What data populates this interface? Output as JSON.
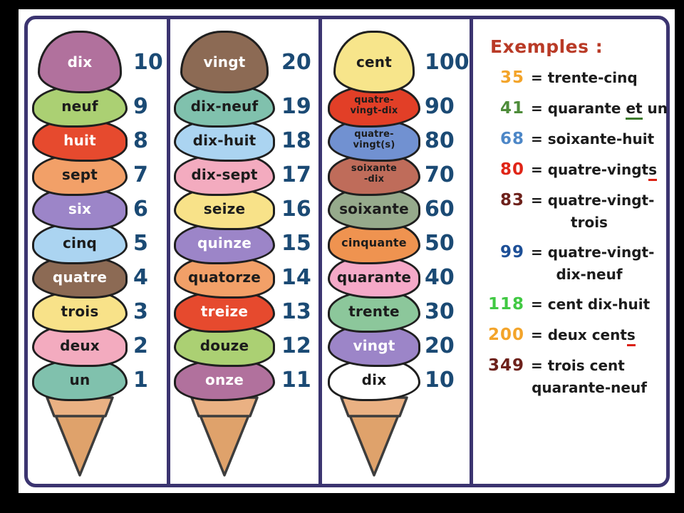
{
  "poster": {
    "frame_color": "#000000",
    "board_color": "#ffffff",
    "border_color": "#3b3470",
    "number_color": "#1b4a74",
    "scoop_outline_color": "#1f1f1f",
    "cone_colors": {
      "rim": "#eab183",
      "body": "#dfa26b",
      "outline": "#3d3d3d"
    }
  },
  "columns": [
    {
      "id": "units",
      "rows": [
        {
          "word": "dix",
          "num": "10",
          "bg": "#b1719d",
          "fg": "#ffffff"
        },
        {
          "word": "neuf",
          "num": "9",
          "bg": "#abd073",
          "fg": "#1c1c1c"
        },
        {
          "word": "huit",
          "num": "8",
          "bg": "#e64a2e",
          "fg": "#ffffff"
        },
        {
          "word": "sept",
          "num": "7",
          "bg": "#f2a068",
          "fg": "#1c1c1c"
        },
        {
          "word": "six",
          "num": "6",
          "bg": "#9c85c8",
          "fg": "#ffffff"
        },
        {
          "word": "cinq",
          "num": "5",
          "bg": "#abd4f1",
          "fg": "#1c1c1c"
        },
        {
          "word": "quatre",
          "num": "4",
          "bg": "#8c6a54",
          "fg": "#ffffff"
        },
        {
          "word": "trois",
          "num": "3",
          "bg": "#f8e289",
          "fg": "#1c1c1c"
        },
        {
          "word": "deux",
          "num": "2",
          "bg": "#f3abbf",
          "fg": "#1c1c1c"
        },
        {
          "word": "un",
          "num": "1",
          "bg": "#80c1ad",
          "fg": "#1c1c1c"
        }
      ]
    },
    {
      "id": "teens",
      "rows": [
        {
          "word": "vingt",
          "num": "20",
          "bg": "#8c6a54",
          "fg": "#ffffff"
        },
        {
          "word": "dix-neuf",
          "num": "19",
          "bg": "#80c1ad",
          "fg": "#1c1c1c"
        },
        {
          "word": "dix-huit",
          "num": "18",
          "bg": "#abd4f1",
          "fg": "#1c1c1c"
        },
        {
          "word": "dix-sept",
          "num": "17",
          "bg": "#f3abbf",
          "fg": "#1c1c1c"
        },
        {
          "word": "seize",
          "num": "16",
          "bg": "#f8e289",
          "fg": "#1c1c1c"
        },
        {
          "word": "quinze",
          "num": "15",
          "bg": "#9c85c8",
          "fg": "#ffffff"
        },
        {
          "word": "quatorze",
          "num": "14",
          "bg": "#f2a068",
          "fg": "#1c1c1c"
        },
        {
          "word": "treize",
          "num": "13",
          "bg": "#e64a2e",
          "fg": "#ffffff"
        },
        {
          "word": "douze",
          "num": "12",
          "bg": "#abd073",
          "fg": "#1c1c1c"
        },
        {
          "word": "onze",
          "num": "11",
          "bg": "#b1719d",
          "fg": "#ffffff"
        }
      ]
    },
    {
      "id": "tens",
      "rows": [
        {
          "word": "cent",
          "num": "100",
          "bg": "#f7e58b",
          "fg": "#1c1c1c"
        },
        {
          "word": "quatre-\nvingt-dix",
          "num": "90",
          "bg": "#e23f27",
          "fg": "#1c1c1c"
        },
        {
          "word": "quatre-\nvingt(s)",
          "num": "80",
          "bg": "#7191d1",
          "fg": "#1c1c1c"
        },
        {
          "word": "soixante\n-dix",
          "num": "70",
          "bg": "#bf6c5a",
          "fg": "#1c1c1c"
        },
        {
          "word": "soixante",
          "num": "60",
          "bg": "#96aa8c",
          "fg": "#1c1c1c"
        },
        {
          "word": "cinquante",
          "num": "50",
          "bg": "#ef9350",
          "fg": "#1c1c1c"
        },
        {
          "word": "quarante",
          "num": "40",
          "bg": "#f5a9c8",
          "fg": "#1c1c1c"
        },
        {
          "word": "trente",
          "num": "30",
          "bg": "#8cc79b",
          "fg": "#1c1c1c"
        },
        {
          "word": "vingt",
          "num": "20",
          "bg": "#9c85c8",
          "fg": "#ffffff"
        },
        {
          "word": "dix",
          "num": "10",
          "bg": "#ffffff",
          "fg": "#1c1c1c"
        }
      ]
    }
  ],
  "examples": {
    "title": "Exemples :",
    "title_color": "#b93a26",
    "text_color": "#1c1c1c",
    "items": [
      {
        "num": "35",
        "num_color": "#f3a42a",
        "segs": [
          {
            "t": "= trente-cinq"
          }
        ]
      },
      {
        "num": "41",
        "num_color": "#4e8c3a",
        "segs": [
          {
            "t": "= quarante "
          },
          {
            "t": "et",
            "u": "#3d7a2c"
          },
          {
            "t": " un"
          }
        ]
      },
      {
        "num": "68",
        "num_color": "#4d87c7",
        "segs": [
          {
            "t": "= soixante-huit"
          }
        ]
      },
      {
        "num": "80",
        "num_color": "#e02517",
        "segs": [
          {
            "t": "= quatre-vingt"
          },
          {
            "t": "s",
            "u": "#da1f10"
          }
        ]
      },
      {
        "num": "83",
        "num_color": "#6d211b",
        "segs": [
          {
            "t": "= quatre-vingt-"
          }
        ],
        "line2": "trois"
      },
      {
        "num": "99",
        "num_color": "#1d4f97",
        "segs": [
          {
            "t": "= quatre-vingt-"
          }
        ],
        "line2": "dix-neuf"
      },
      {
        "num": "118",
        "num_color": "#41c943",
        "segs": [
          {
            "t": "= cent dix-huit"
          }
        ]
      },
      {
        "num": "200",
        "num_color": "#f3a42a",
        "segs": [
          {
            "t": "= deux cent"
          },
          {
            "t": "s",
            "u": "#da1f10"
          }
        ]
      },
      {
        "num": "349",
        "num_color": "#6d211b",
        "segs": [
          {
            "t": "= trois cent"
          }
        ],
        "line2": "quarante-neuf"
      }
    ]
  }
}
